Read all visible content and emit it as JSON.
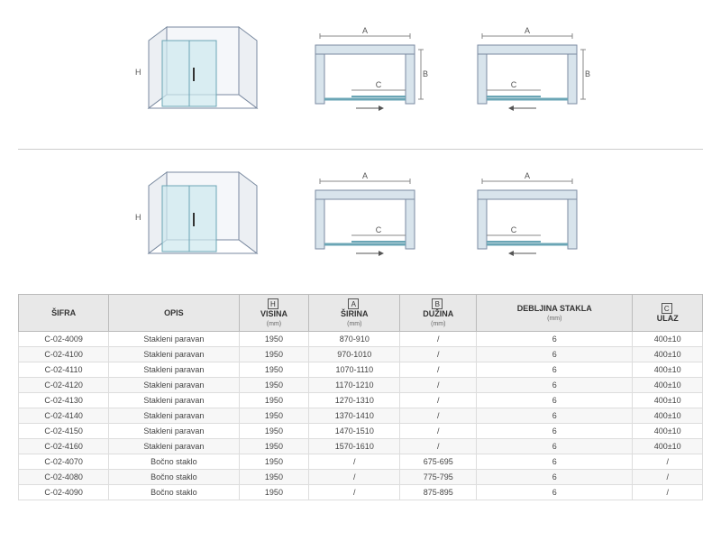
{
  "diagram_colors": {
    "wall_stroke": "#7a8aa0",
    "wall_fill": "#f5f7fa",
    "glass_fill": "#cde8ee",
    "glass_stroke": "#6aa5b5",
    "dim_stroke": "#888888"
  },
  "dim_labels": {
    "H": "H",
    "A": "A",
    "B": "B",
    "C": "C"
  },
  "table": {
    "columns": [
      {
        "label": "ŠIFRA",
        "unit": "",
        "dim": ""
      },
      {
        "label": "OPIS",
        "unit": "",
        "dim": ""
      },
      {
        "label": "VISINA",
        "unit": "(mm)",
        "dim": "H"
      },
      {
        "label": "ŠIRINA",
        "unit": "(mm)",
        "dim": "A"
      },
      {
        "label": "DUŽINA",
        "unit": "(mm)",
        "dim": "B"
      },
      {
        "label": "DEBLJINA STAKLA",
        "unit": "(mm)",
        "dim": ""
      },
      {
        "label": "ULAZ",
        "unit": "",
        "dim": "C"
      }
    ],
    "rows": [
      [
        "C-02-4009",
        "Stakleni paravan",
        "1950",
        "870-910",
        "/",
        "6",
        "400±10"
      ],
      [
        "C-02-4100",
        "Stakleni paravan",
        "1950",
        "970-1010",
        "/",
        "6",
        "400±10"
      ],
      [
        "C-02-4110",
        "Stakleni paravan",
        "1950",
        "1070-1110",
        "/",
        "6",
        "400±10"
      ],
      [
        "C-02-4120",
        "Stakleni paravan",
        "1950",
        "1170-1210",
        "/",
        "6",
        "400±10"
      ],
      [
        "C-02-4130",
        "Stakleni paravan",
        "1950",
        "1270-1310",
        "/",
        "6",
        "400±10"
      ],
      [
        "C-02-4140",
        "Stakleni paravan",
        "1950",
        "1370-1410",
        "/",
        "6",
        "400±10"
      ],
      [
        "C-02-4150",
        "Stakleni paravan",
        "1950",
        "1470-1510",
        "/",
        "6",
        "400±10"
      ],
      [
        "C-02-4160",
        "Stakleni paravan",
        "1950",
        "1570-1610",
        "/",
        "6",
        "400±10"
      ],
      [
        "C-02-4070",
        "Bočno staklo",
        "1950",
        "/",
        "675-695",
        "6",
        "/"
      ],
      [
        "C-02-4080",
        "Bočno staklo",
        "1950",
        "/",
        "775-795",
        "6",
        "/"
      ],
      [
        "C-02-4090",
        "Bočno staklo",
        "1950",
        "/",
        "875-895",
        "6",
        "/"
      ]
    ]
  }
}
